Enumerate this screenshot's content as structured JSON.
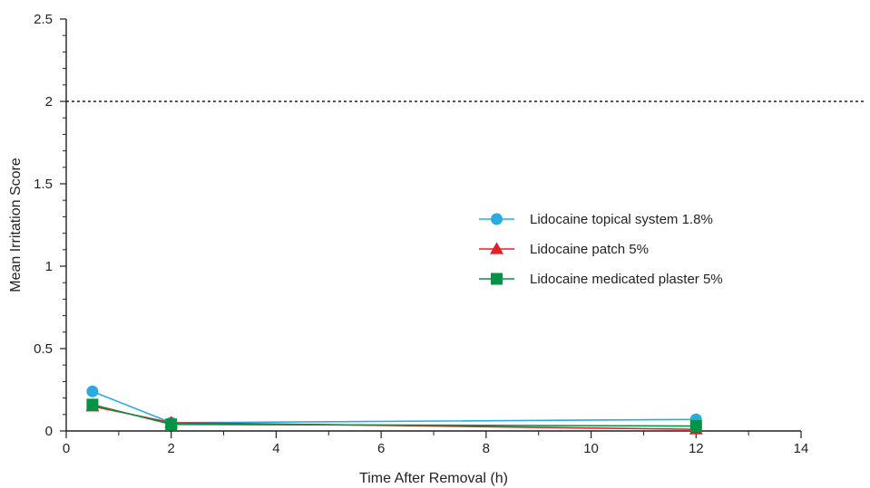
{
  "chart_data": {
    "type": "line",
    "xlabel": "Time After Removal (h)",
    "ylabel": "Mean Irritation Score",
    "xlim": [
      0,
      14
    ],
    "ylim": [
      0,
      2.5
    ],
    "x_ticks": [
      0,
      2,
      4,
      6,
      8,
      10,
      12,
      14
    ],
    "y_ticks": [
      0,
      0.5,
      1,
      1.5,
      2,
      2.5
    ],
    "x_tick_labels": [
      "0",
      "2",
      "4",
      "6",
      "8",
      "10",
      "12",
      "14"
    ],
    "y_tick_labels": [
      "0",
      "0.5",
      "1",
      "1.5",
      "2",
      "2.5"
    ],
    "reference_line": {
      "y": 2,
      "style": "dotted"
    },
    "grid": false,
    "legend_position": "center-right",
    "series": [
      {
        "name": "Lidocaine topical system 1.8%",
        "marker": "circle",
        "color": "#29aae1",
        "x": [
          0.5,
          2,
          12
        ],
        "y": [
          0.24,
          0.05,
          0.07
        ]
      },
      {
        "name": "Lidocaine patch 5%",
        "marker": "triangle",
        "color": "#e31e24",
        "x": [
          0.5,
          2,
          12
        ],
        "y": [
          0.15,
          0.05,
          0.01
        ]
      },
      {
        "name": "Lidocaine medicated plaster 5%",
        "marker": "square",
        "color": "#009444",
        "x": [
          0.5,
          2,
          12
        ],
        "y": [
          0.16,
          0.04,
          0.03
        ]
      }
    ]
  }
}
